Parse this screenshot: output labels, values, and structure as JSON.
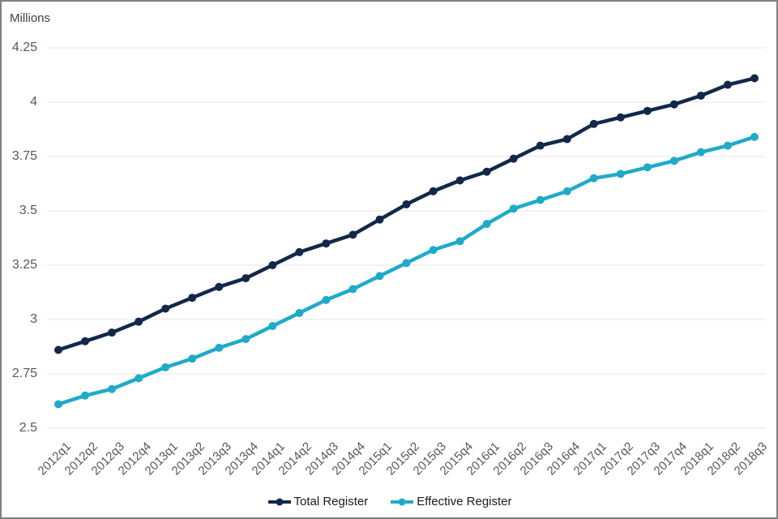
{
  "chart_data": {
    "type": "line",
    "units_label": "Millions",
    "categories": [
      "2012q1",
      "2012q2",
      "2012q3",
      "2012q4",
      "2013q1",
      "2013q2",
      "2013q3",
      "2013q4",
      "2014q1",
      "2014q2",
      "2014q3",
      "2014q4",
      "2015q1",
      "2015q2",
      "2015q3",
      "2015q4",
      "2016q1",
      "2016q2",
      "2016q3",
      "2016q4",
      "2017q1",
      "2017q2",
      "2017q3",
      "2017q4",
      "2018q1",
      "2018q2",
      "2018q3"
    ],
    "series": [
      {
        "name": "Total Register",
        "color": "#12284a",
        "values": [
          2.86,
          2.9,
          2.94,
          2.99,
          3.05,
          3.1,
          3.15,
          3.19,
          3.25,
          3.31,
          3.35,
          3.39,
          3.46,
          3.53,
          3.59,
          3.64,
          3.68,
          3.74,
          3.8,
          3.83,
          3.9,
          3.93,
          3.96,
          3.99,
          4.03,
          4.08,
          4.11
        ]
      },
      {
        "name": "Effective Register",
        "color": "#20aac8",
        "values": [
          2.61,
          2.65,
          2.68,
          2.73,
          2.78,
          2.82,
          2.87,
          2.91,
          2.97,
          3.03,
          3.09,
          3.14,
          3.2,
          3.26,
          3.32,
          3.36,
          3.44,
          3.51,
          3.55,
          3.59,
          3.65,
          3.67,
          3.7,
          3.73,
          3.77,
          3.8,
          3.84
        ]
      }
    ],
    "ylim": [
      2.5,
      4.25
    ],
    "yticks": [
      "4.25",
      "4",
      "3.75",
      "3.5",
      "3.25",
      "3",
      "2.75",
      "2.5"
    ],
    "grid": "horizontal",
    "legend_position": "bottom-center",
    "colors": {
      "gridline": "#e4e4e4",
      "tick_text": "#595959",
      "units_text": "#404040",
      "legend_text": "#1a1a1a",
      "border": "#808080",
      "background": "#ffffff"
    }
  }
}
